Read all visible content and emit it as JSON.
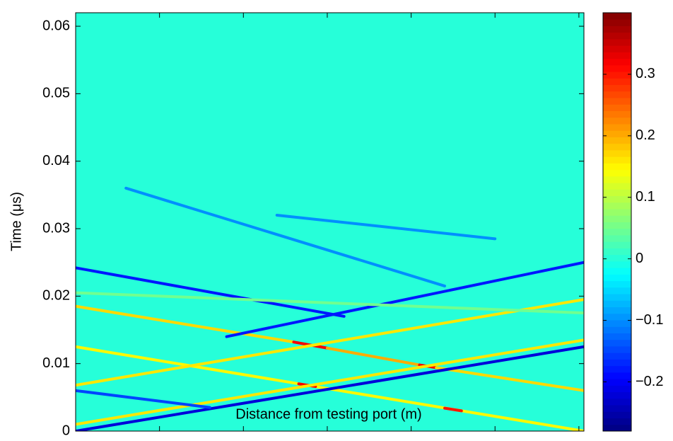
{
  "chart_data": {
    "type": "heatmap",
    "xlabel": "Distance from testing port (m)",
    "ylabel": "Time (μs)",
    "xlim": [
      0,
      3.03
    ],
    "ylim": [
      0,
      0.062
    ],
    "xticks": [
      0,
      0.5,
      1,
      1.5,
      2,
      2.5,
      3
    ],
    "yticks": [
      0,
      0.01,
      0.02,
      0.03,
      0.04,
      0.05,
      0.06
    ],
    "colormap": "jet",
    "clim": [
      -0.28,
      0.4
    ],
    "cticks": [
      {
        "value": -0.2,
        "label": "−0.2"
      },
      {
        "value": -0.1,
        "label": "−0.1"
      },
      0,
      0.1,
      0.2,
      0.3
    ],
    "background_value": 0,
    "traces": [
      {
        "x": [
          0,
          1.3
        ],
        "y": [
          0.0185,
          0.0132
        ],
        "value": 0.17
      },
      {
        "x": [
          1.3,
          1.5
        ],
        "y": [
          0.0132,
          0.0123
        ],
        "value": 0.32
      },
      {
        "x": [
          1.5,
          2.05
        ],
        "y": [
          0.0123,
          0.0098
        ],
        "value": 0.2
      },
      {
        "x": [
          2.05,
          2.15
        ],
        "y": [
          0.0098,
          0.0094
        ],
        "value": 0.32
      },
      {
        "x": [
          2.15,
          3.03
        ],
        "y": [
          0.0094,
          0.006
        ],
        "value": 0.17
      },
      {
        "x": [
          0,
          3.03
        ],
        "y": [
          0.0125,
          0
        ],
        "value": 0.15
      },
      {
        "x": [
          1.33,
          1.43
        ],
        "y": [
          0.007,
          0.0066
        ],
        "value": 0.32
      },
      {
        "x": [
          2.2,
          2.3
        ],
        "y": [
          0.0034,
          0.003
        ],
        "value": 0.3
      },
      {
        "x": [
          0,
          3.03
        ],
        "y": [
          0.001,
          0.0135
        ],
        "value": 0.16
      },
      {
        "x": [
          0,
          3.03
        ],
        "y": [
          0.0068,
          0.0195
        ],
        "value": 0.16
      },
      {
        "x": [
          0,
          3.03
        ],
        "y": [
          0,
          0.0125
        ],
        "value": -0.22
      },
      {
        "x": [
          0,
          1.6
        ],
        "y": [
          0.0242,
          0.017
        ],
        "value": -0.18
      },
      {
        "x": [
          0.9,
          3.03
        ],
        "y": [
          0.014,
          0.025
        ],
        "value": -0.18
      },
      {
        "x": [
          0,
          0.8
        ],
        "y": [
          0.006,
          0.0035
        ],
        "value": -0.15
      },
      {
        "x": [
          0.3,
          2.2
        ],
        "y": [
          0.036,
          0.0215
        ],
        "value": -0.1
      },
      {
        "x": [
          1.2,
          2.5
        ],
        "y": [
          0.032,
          0.0285
        ],
        "value": -0.1
      },
      {
        "x": [
          0,
          3.03
        ],
        "y": [
          0.0205,
          0.0175
        ],
        "value": 0.05
      }
    ]
  }
}
